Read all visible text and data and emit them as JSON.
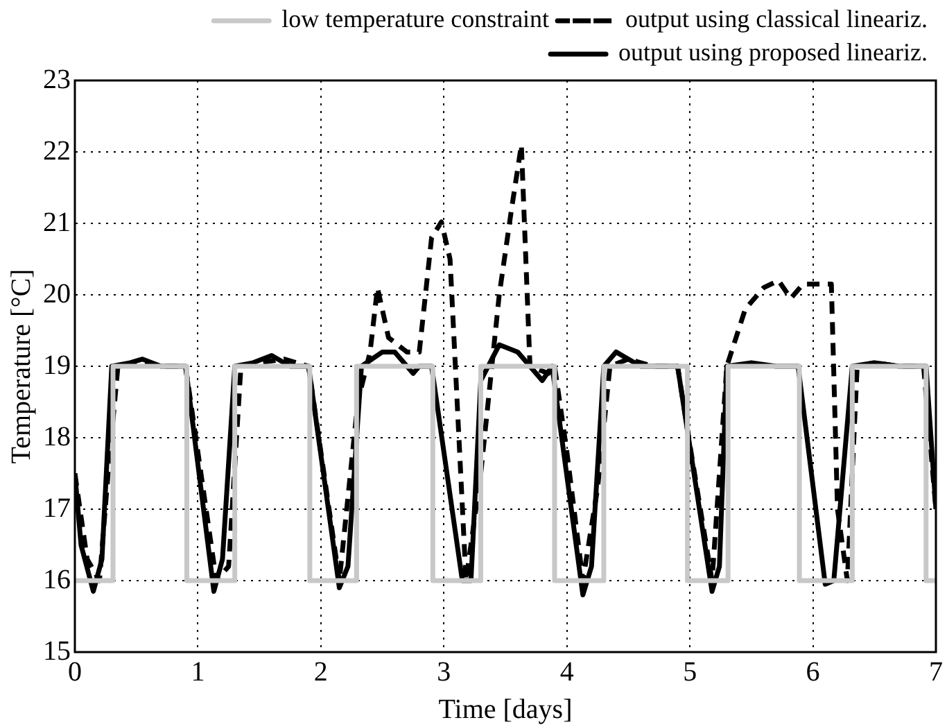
{
  "chart_data": {
    "type": "line",
    "xlabel": "Time [days]",
    "ylabel": "Temperature [°C]",
    "xlim": [
      0,
      7
    ],
    "ylim": [
      15,
      23
    ],
    "xticks": [
      0,
      1,
      2,
      3,
      4,
      5,
      6,
      7
    ],
    "yticks": [
      15,
      16,
      17,
      18,
      19,
      20,
      21,
      22,
      23
    ],
    "grid": true,
    "legend": "top right",
    "marker": "none",
    "series": [
      {
        "name": "low temperature constraint",
        "color": "#c8c8c8",
        "line_style": "solid",
        "x": [
          0,
          0.31,
          0.31,
          0.91,
          0.91,
          1.3,
          1.3,
          1.91,
          1.91,
          2.29,
          2.29,
          2.91,
          2.91,
          3.3,
          3.3,
          3.9,
          3.9,
          4.3,
          4.3,
          4.98,
          4.98,
          5.31,
          5.31,
          5.89,
          5.89,
          6.32,
          6.32,
          6.92,
          6.92,
          7
        ],
        "values": [
          16,
          16,
          19,
          19,
          16,
          16,
          19,
          19,
          16,
          16,
          19,
          19,
          16,
          16,
          19,
          19,
          16,
          16,
          19,
          19,
          16,
          16,
          19,
          19,
          16,
          16,
          19,
          19,
          16,
          16
        ]
      },
      {
        "name": "output using classical lineariz.",
        "color": "#000000",
        "line_style": "dashed",
        "x": [
          0,
          0.1,
          0.2,
          0.27,
          0.35,
          0.5,
          0.7,
          0.9,
          1.0,
          1.15,
          1.25,
          1.35,
          1.5,
          1.7,
          1.9,
          2.0,
          2.15,
          2.3,
          2.4,
          2.46,
          2.55,
          2.7,
          2.8,
          2.9,
          2.98,
          3.05,
          3.18,
          3.3,
          3.45,
          3.55,
          3.63,
          3.7,
          3.85,
          3.9,
          4.0,
          4.13,
          4.25,
          4.35,
          4.5,
          4.7,
          4.9,
          5.0,
          5.18,
          5.3,
          5.45,
          5.6,
          5.72,
          5.82,
          5.92,
          6.15,
          6.2,
          6.28,
          6.36,
          6.5,
          6.7,
          6.9,
          7
        ],
        "values": [
          17.5,
          16.3,
          16.0,
          17.5,
          19.0,
          19.05,
          19.0,
          19.0,
          17.8,
          16.0,
          16.2,
          19.0,
          19.05,
          19.1,
          19.0,
          17.8,
          16.0,
          18.5,
          19.2,
          20.1,
          19.4,
          19.2,
          19.2,
          20.8,
          21.02,
          20.5,
          16.0,
          17.5,
          20.0,
          21.2,
          22.1,
          19.0,
          18.9,
          19.0,
          17.8,
          16.0,
          17.3,
          19.0,
          19.1,
          19.0,
          19.0,
          17.9,
          16.0,
          19.0,
          19.8,
          20.1,
          20.2,
          19.95,
          20.15,
          20.15,
          17.0,
          16.0,
          19.0,
          19.05,
          19.0,
          19.0,
          17.0
        ]
      },
      {
        "name": "output using proposed lineariz.",
        "color": "#000000",
        "line_style": "solid",
        "x": [
          0,
          0.05,
          0.15,
          0.22,
          0.3,
          0.45,
          0.55,
          0.7,
          0.9,
          1.13,
          1.2,
          1.3,
          1.45,
          1.6,
          1.75,
          1.9,
          2.15,
          2.22,
          2.33,
          2.5,
          2.6,
          2.75,
          2.8,
          2.9,
          3.15,
          3.22,
          3.3,
          3.45,
          3.6,
          3.8,
          3.88,
          4.13,
          4.2,
          4.3,
          4.4,
          4.6,
          4.9,
          5.18,
          5.24,
          5.3,
          5.5,
          5.7,
          5.88,
          6.1,
          6.17,
          6.32,
          6.5,
          6.7,
          6.92,
          7
        ],
        "values": [
          17.5,
          16.5,
          15.85,
          16.3,
          19.0,
          19.05,
          19.1,
          19.0,
          19.0,
          15.85,
          16.3,
          19.0,
          19.05,
          19.15,
          19.0,
          19.0,
          15.9,
          16.2,
          19.0,
          19.2,
          19.2,
          18.9,
          19.0,
          19.0,
          16.0,
          16.0,
          18.8,
          19.3,
          19.2,
          18.8,
          19.0,
          15.8,
          16.2,
          19.0,
          19.2,
          19.0,
          19.0,
          15.85,
          16.2,
          19.0,
          19.05,
          19.0,
          19.0,
          15.95,
          16.0,
          19.0,
          19.05,
          19.0,
          19.0,
          17.0
        ]
      }
    ]
  }
}
